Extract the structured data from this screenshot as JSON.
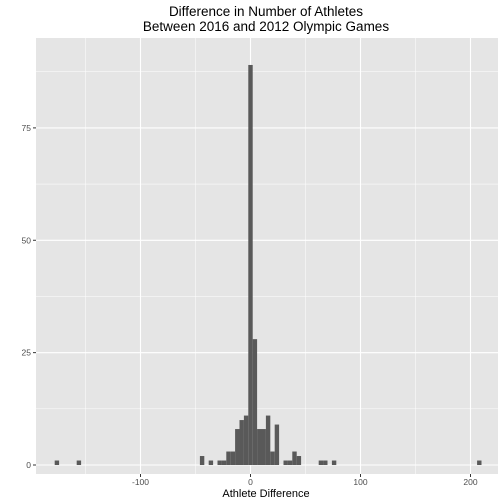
{
  "chart_data": {
    "type": "bar",
    "title": [
      "Difference in Number of Athletes",
      "Between 2016 and 2012 Olympic Games"
    ],
    "xlabel": "Athlete Difference",
    "ylabel": "",
    "xlim": [
      -195,
      225
    ],
    "ylim": [
      -2,
      95
    ],
    "binwidth": 4,
    "x_ticks": [
      -100,
      0,
      100,
      200
    ],
    "x_tick_labels": [
      "-100",
      "0",
      "100",
      "200"
    ],
    "y_ticks": [
      0,
      25,
      50,
      75
    ],
    "y_tick_labels": [
      "0",
      "25",
      "50",
      "75"
    ],
    "grid": true,
    "legend": "none",
    "bins": [
      {
        "x": -176,
        "count": 1
      },
      {
        "x": -156,
        "count": 1
      },
      {
        "x": -44,
        "count": 2
      },
      {
        "x": -36,
        "count": 1
      },
      {
        "x": -28,
        "count": 1
      },
      {
        "x": -24,
        "count": 1
      },
      {
        "x": -20,
        "count": 3
      },
      {
        "x": -16,
        "count": 3
      },
      {
        "x": -12,
        "count": 8
      },
      {
        "x": -8,
        "count": 10
      },
      {
        "x": -4,
        "count": 11
      },
      {
        "x": 0,
        "count": 89
      },
      {
        "x": 4,
        "count": 28
      },
      {
        "x": 8,
        "count": 8
      },
      {
        "x": 12,
        "count": 8
      },
      {
        "x": 16,
        "count": 11
      },
      {
        "x": 20,
        "count": 3
      },
      {
        "x": 24,
        "count": 9
      },
      {
        "x": 32,
        "count": 1
      },
      {
        "x": 36,
        "count": 1
      },
      {
        "x": 40,
        "count": 3
      },
      {
        "x": 44,
        "count": 2
      },
      {
        "x": 64,
        "count": 1
      },
      {
        "x": 68,
        "count": 1
      },
      {
        "x": 76,
        "count": 1
      },
      {
        "x": 208,
        "count": 1
      }
    ],
    "colors": {
      "panel": "#e5e5e5",
      "grid_major": "#ffffff",
      "bar": "#595959",
      "tick": "#333333",
      "tick_text": "#4d4d4d"
    }
  }
}
